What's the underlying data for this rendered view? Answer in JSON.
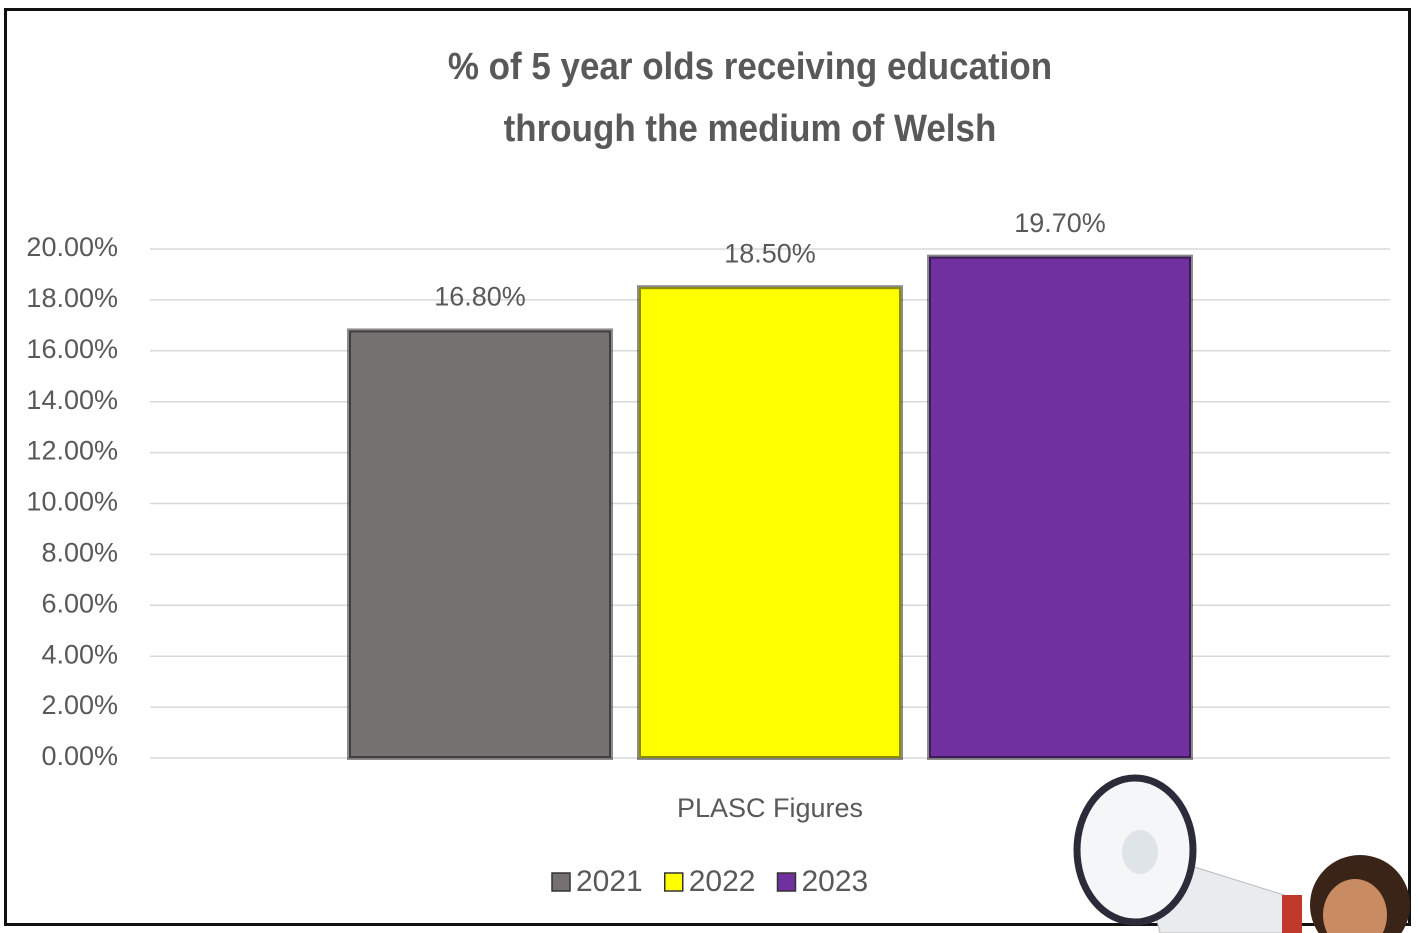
{
  "chart_data": {
    "type": "bar",
    "title": "% of 5 year olds receiving education through the medium of Welsh",
    "categories": [
      "PLASC Figures"
    ],
    "series": [
      {
        "name": "2021",
        "color": "#767171",
        "values": [
          16.8
        ],
        "value_labels": [
          "16.80%"
        ]
      },
      {
        "name": "2022",
        "color": "#ffff00",
        "values": [
          18.5
        ],
        "value_labels": [
          "18.50%"
        ]
      },
      {
        "name": "2023",
        "color": "#7030a0",
        "values": [
          19.7
        ],
        "value_labels": [
          "19.70%"
        ]
      }
    ],
    "ylim": [
      0,
      20
    ],
    "yticks": [
      {
        "value": 0,
        "label": "0.00%"
      },
      {
        "value": 2,
        "label": "2.00%"
      },
      {
        "value": 4,
        "label": "4.00%"
      },
      {
        "value": 6,
        "label": "6.00%"
      },
      {
        "value": 8,
        "label": "8.00%"
      },
      {
        "value": 10,
        "label": "10.00%"
      },
      {
        "value": 12,
        "label": "12.00%"
      },
      {
        "value": 14,
        "label": "14.00%"
      },
      {
        "value": 16,
        "label": "16.00%"
      },
      {
        "value": 18,
        "label": "18.00%"
      },
      {
        "value": 20,
        "label": "20.00%"
      }
    ],
    "grid": true,
    "legend": "bottom"
  }
}
